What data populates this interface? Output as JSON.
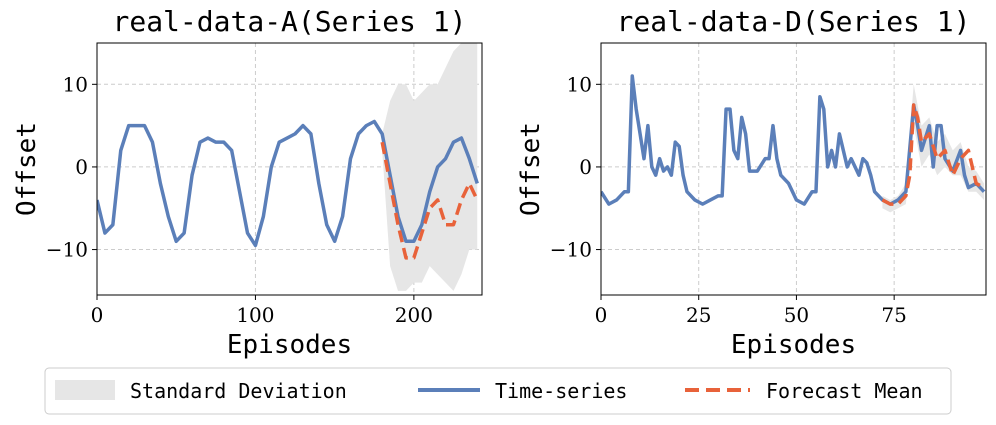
{
  "chart_data": [
    {
      "type": "line",
      "title": "real-data-A(Series 1)",
      "xlabel": "Episodes",
      "ylabel": "Offset",
      "xlim": [
        0,
        243
      ],
      "ylim": [
        -15.5,
        15
      ],
      "xticks": [
        0,
        100,
        200
      ],
      "yticks": [
        {
          "value": -10,
          "label": "−10"
        },
        0,
        10
      ],
      "grid": true,
      "series": [
        {
          "name": "Standard Deviation",
          "kind": "band",
          "color": "#e6e6e6",
          "x": [
            180,
            185,
            190,
            195,
            200,
            205,
            210,
            215,
            220,
            225,
            230,
            235,
            240
          ],
          "lower": [
            2,
            -12,
            -15,
            -15,
            -14,
            -14,
            -12,
            -13,
            -14,
            -15,
            -13,
            -10,
            -10
          ],
          "upper": [
            4,
            8,
            10,
            10,
            8,
            9,
            10,
            10,
            12,
            14,
            15,
            16,
            16
          ]
        },
        {
          "name": "Time-series",
          "kind": "line",
          "color": "#5b7fb9",
          "x": [
            0,
            5,
            10,
            15,
            20,
            25,
            30,
            35,
            40,
            45,
            50,
            55,
            60,
            65,
            70,
            75,
            80,
            85,
            90,
            95,
            100,
            105,
            110,
            115,
            120,
            125,
            130,
            135,
            140,
            145,
            150,
            155,
            160,
            165,
            170,
            175,
            180,
            185,
            190,
            195,
            200,
            205,
            210,
            215,
            220,
            225,
            230,
            235,
            240
          ],
          "values": [
            -4,
            -8,
            -7,
            2,
            5,
            5,
            5,
            3,
            -2,
            -6,
            -9,
            -8,
            -1,
            3,
            3.5,
            3,
            3,
            2,
            -3,
            -8,
            -9.5,
            -6,
            0,
            3,
            3.5,
            4,
            5,
            4,
            -2,
            -7,
            -9,
            -6,
            1,
            4,
            5,
            5.5,
            4,
            -1,
            -6,
            -9,
            -9,
            -7,
            -3,
            0,
            1,
            3,
            3.5,
            1,
            -2
          ]
        },
        {
          "name": "Forecast Mean",
          "kind": "line",
          "dash": true,
          "color": "#e8623a",
          "x": [
            180,
            185,
            190,
            195,
            200,
            205,
            210,
            215,
            220,
            225,
            230,
            235,
            240
          ],
          "values": [
            3,
            -2,
            -7,
            -11,
            -11,
            -8,
            -5,
            -4,
            -7,
            -7,
            -4,
            -2,
            -4
          ]
        }
      ]
    },
    {
      "type": "line",
      "title": "real-data-D(Series 1)",
      "xlabel": "Episodes",
      "ylabel": "Offset",
      "xlim": [
        0,
        98.5
      ],
      "ylim": [
        -15.5,
        15
      ],
      "xticks": [
        0,
        25,
        50,
        75
      ],
      "yticks": [
        {
          "value": -10,
          "label": "−10"
        },
        0,
        10
      ],
      "grid": true,
      "series": [
        {
          "name": "Standard Deviation",
          "kind": "band",
          "color": "#e6e6e6",
          "x": [
            72,
            74,
            76,
            78,
            80,
            82,
            84,
            86,
            88,
            90,
            92,
            94,
            96,
            98
          ],
          "lower": [
            -5,
            -5.5,
            -5,
            -4.5,
            5,
            0,
            1.5,
            -1,
            0,
            -1,
            -1,
            -3,
            -3,
            -4
          ],
          "upper": [
            -3.5,
            -4,
            -3.5,
            -2,
            10,
            5,
            6,
            3,
            4,
            2,
            3,
            0,
            -0.5,
            -2
          ]
        },
        {
          "name": "Time-series",
          "kind": "line",
          "color": "#5b7fb9",
          "x": [
            0,
            2,
            4,
            6,
            7,
            8,
            9,
            10,
            11,
            12,
            13,
            14,
            15,
            16,
            17,
            18,
            19,
            20,
            21,
            22,
            24,
            26,
            28,
            30,
            31,
            32,
            33,
            34,
            35,
            36,
            37,
            38,
            40,
            42,
            43,
            44,
            45,
            46,
            48,
            50,
            52,
            54,
            55,
            56,
            57,
            58,
            59,
            60,
            61,
            62,
            63,
            64,
            65,
            66,
            67,
            68,
            69,
            70,
            72,
            74,
            76,
            78,
            80,
            81,
            82,
            84,
            85,
            86,
            87,
            88,
            90,
            92,
            93,
            94,
            96,
            98
          ],
          "values": [
            -3,
            -4.5,
            -4,
            -3,
            -3,
            11,
            7,
            4,
            1,
            5,
            0,
            -1,
            1,
            -0.5,
            0,
            -1,
            3,
            2.5,
            -1,
            -3,
            -4,
            -4.5,
            -4,
            -3.5,
            -3.5,
            7,
            7,
            2,
            1,
            6,
            4,
            -0.5,
            -0.5,
            1,
            1,
            5,
            1,
            -1,
            -2,
            -4,
            -4.5,
            -3,
            -3,
            8.5,
            7,
            0,
            2,
            0,
            4,
            2,
            0,
            1,
            0,
            -1,
            1,
            0.5,
            -1,
            -3,
            -4,
            -4.5,
            -4,
            -3,
            7.5,
            5,
            2,
            5,
            0,
            5,
            5,
            1,
            -0.5,
            2,
            -1,
            -2.5,
            -2,
            -3
          ]
        },
        {
          "name": "Forecast Mean",
          "kind": "line",
          "dash": true,
          "color": "#e8623a",
          "x": [
            72,
            74,
            76,
            78,
            79,
            80,
            81,
            82,
            84,
            86,
            88,
            90,
            92,
            94,
            96,
            98
          ],
          "values": [
            -4,
            -4.5,
            -4.5,
            -3.5,
            -1,
            7.5,
            6,
            3,
            4,
            1,
            2,
            -1,
            1,
            2,
            -2,
            -2.5
          ]
        }
      ]
    }
  ]
}
